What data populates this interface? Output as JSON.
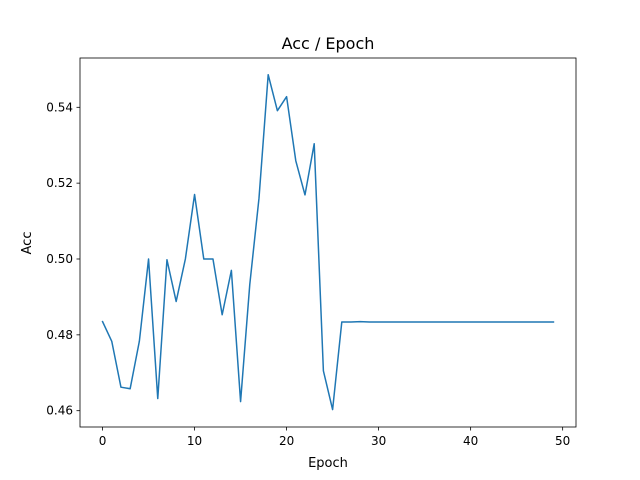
{
  "chart_data": {
    "type": "line",
    "title": "Acc / Epoch",
    "xlabel": "Epoch",
    "ylabel": "Acc",
    "xlim": [
      -2.45,
      51.45
    ],
    "ylim": [
      0.4557,
      0.553
    ],
    "xticks": [
      0,
      10,
      20,
      30,
      40,
      50
    ],
    "xtick_labels": [
      "0",
      "10",
      "20",
      "30",
      "40",
      "50"
    ],
    "yticks": [
      0.46,
      0.48,
      0.5,
      0.52,
      0.54
    ],
    "ytick_labels": [
      "0.46",
      "0.48",
      "0.50",
      "0.52",
      "0.54"
    ],
    "grid": false,
    "series": [
      {
        "color": "#1f77b4",
        "x": [
          0,
          1,
          2,
          3,
          4,
          5,
          6,
          7,
          8,
          9,
          10,
          11,
          12,
          13,
          14,
          15,
          16,
          17,
          18,
          19,
          20,
          21,
          22,
          23,
          24,
          25,
          26,
          27,
          28,
          29,
          30,
          31,
          32,
          33,
          34,
          35,
          36,
          37,
          38,
          39,
          40,
          41,
          42,
          43,
          44,
          45,
          46,
          47,
          48,
          49
        ],
        "values": [
          0.4835,
          0.4783,
          0.4662,
          0.4658,
          0.4783,
          0.5,
          0.4632,
          0.4998,
          0.4888,
          0.5,
          0.517,
          0.5,
          0.5,
          0.4853,
          0.497,
          0.4624,
          0.4933,
          0.516,
          0.5486,
          0.5391,
          0.5428,
          0.5259,
          0.5169,
          0.5304,
          0.4705,
          0.4603,
          0.4834,
          0.4834,
          0.4835,
          0.4834,
          0.4834,
          0.4834,
          0.4834,
          0.4834,
          0.4834,
          0.4834,
          0.4834,
          0.4834,
          0.4834,
          0.4834,
          0.4834,
          0.4834,
          0.4834,
          0.4834,
          0.4834,
          0.4834,
          0.4834,
          0.4834,
          0.4834,
          0.4834
        ]
      }
    ]
  }
}
